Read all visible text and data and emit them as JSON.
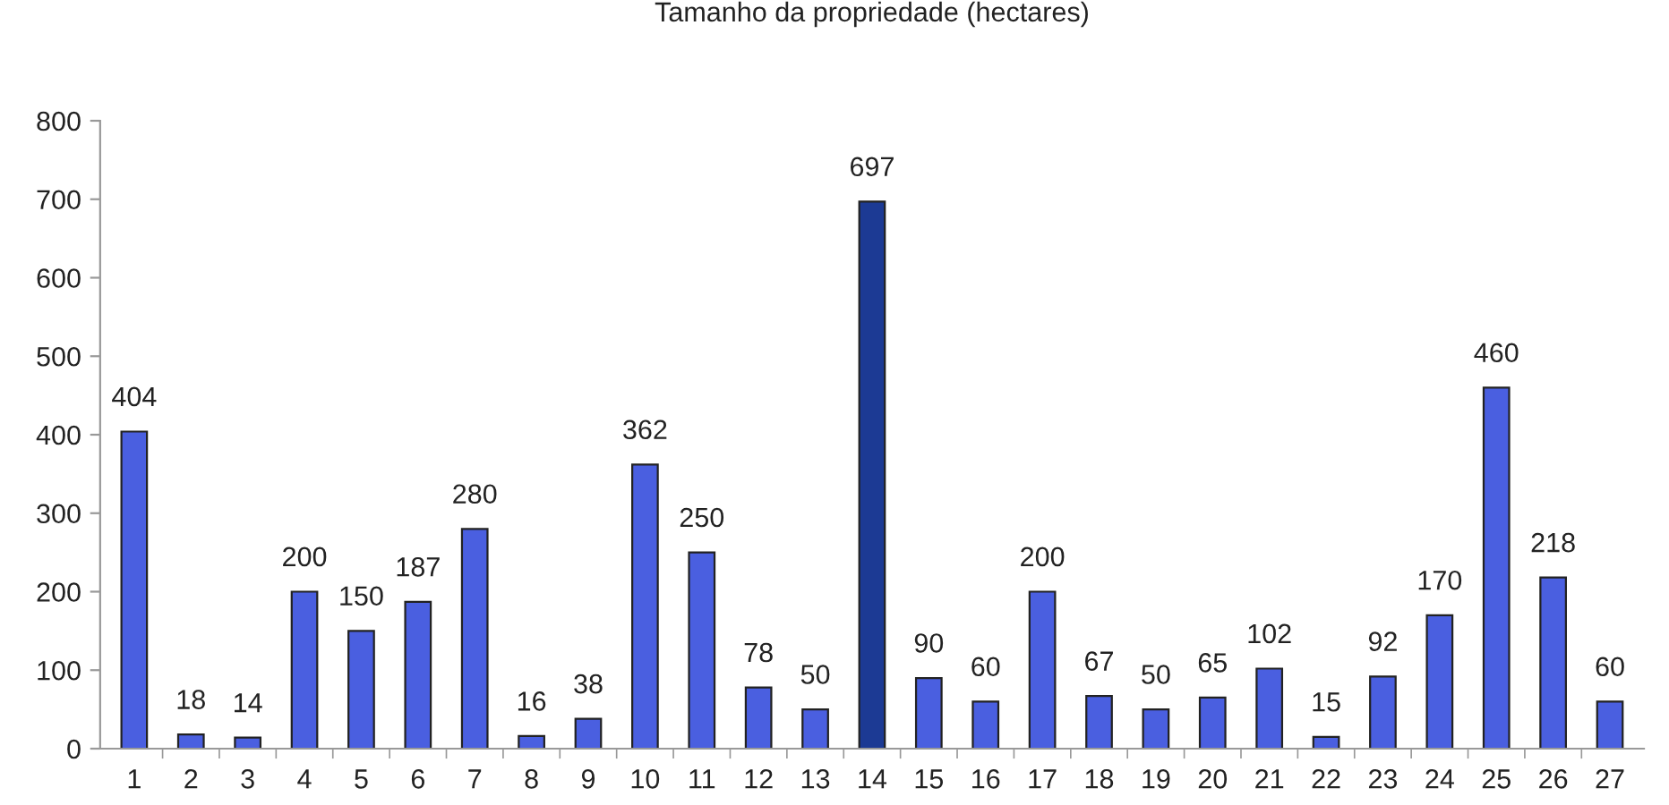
{
  "chart_data": {
    "type": "bar",
    "title": "Tamanho da propriedade (hectares)",
    "categories": [
      "1",
      "2",
      "3",
      "4",
      "5",
      "6",
      "7",
      "8",
      "9",
      "10",
      "11",
      "12",
      "13",
      "14",
      "15",
      "16",
      "17",
      "18",
      "19",
      "20",
      "21",
      "22",
      "23",
      "24",
      "25",
      "26",
      "27"
    ],
    "values": [
      404,
      18,
      14,
      200,
      150,
      187,
      280,
      16,
      38,
      362,
      250,
      78,
      50,
      697,
      90,
      60,
      200,
      67,
      50,
      65,
      102,
      15,
      92,
      170,
      460,
      218,
      60
    ],
    "colors": [
      "#4a5fe0",
      "#4a5fe0",
      "#4a5fe0",
      "#4a5fe0",
      "#4a5fe0",
      "#4a5fe0",
      "#4a5fe0",
      "#4a5fe0",
      "#4a5fe0",
      "#4a5fe0",
      "#4a5fe0",
      "#4a5fe0",
      "#4a5fe0",
      "#1c3a94",
      "#4a5fe0",
      "#4a5fe0",
      "#4a5fe0",
      "#4a5fe0",
      "#4a5fe0",
      "#4a5fe0",
      "#4a5fe0",
      "#4a5fe0",
      "#4a5fe0",
      "#4a5fe0",
      "#4a5fe0",
      "#4a5fe0",
      "#4a5fe0"
    ],
    "ylim": [
      0,
      800
    ],
    "yticks": [
      0,
      100,
      200,
      300,
      400,
      500,
      600,
      700,
      800
    ],
    "data_labels": true,
    "grid": false,
    "legend": false
  }
}
